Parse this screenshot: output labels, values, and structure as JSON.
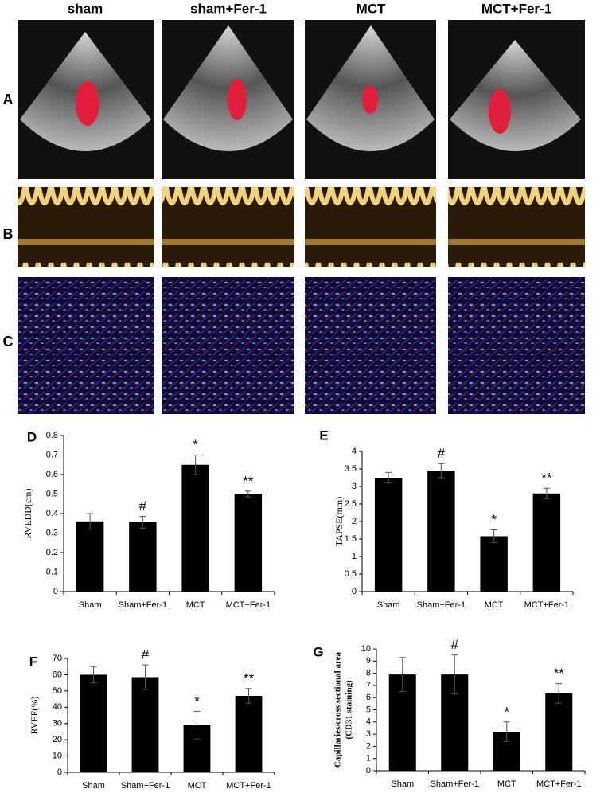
{
  "figure": {
    "column_labels": [
      "sham",
      "sham+Fer-1",
      "MCT",
      "MCT+Fer-1"
    ],
    "row_labels": [
      "A",
      "B",
      "C"
    ]
  },
  "chart_data": [
    {
      "type": "bar",
      "label": "D",
      "ylabel": [
        "RVEDD(cm)"
      ],
      "categories": [
        "Sham",
        "Sham+Fer-1",
        "MCT",
        "MCT+Fer-1"
      ],
      "values": [
        0.36,
        0.355,
        0.65,
        0.5
      ],
      "errors": [
        0.04,
        0.03,
        0.05,
        0.015
      ],
      "annotations": [
        null,
        "#",
        "*",
        "**"
      ],
      "color": "#000000",
      "ylim": [
        0,
        0.8
      ],
      "yticks": [
        0,
        0.1,
        0.2,
        0.3,
        0.4,
        0.5,
        0.6,
        0.7,
        0.8
      ],
      "grid": false
    },
    {
      "type": "bar",
      "label": "E",
      "ylabel": [
        "TAPSE(mm)"
      ],
      "categories": [
        "Sham",
        "Sham+Fer-1",
        "MCT",
        "MCT+Fer-1"
      ],
      "values": [
        3.25,
        3.45,
        1.58,
        2.8
      ],
      "errors": [
        0.15,
        0.2,
        0.18,
        0.15
      ],
      "annotations": [
        null,
        "#",
        "*",
        "**"
      ],
      "color": "#000000",
      "ylim": [
        0,
        4
      ],
      "yticks": [
        0,
        0.5,
        1,
        1.5,
        2,
        2.5,
        3,
        3.5,
        4
      ],
      "grid": false
    },
    {
      "type": "bar",
      "label": "F",
      "ylabel": [
        "RVEF(%)"
      ],
      "categories": [
        "Sham",
        "Sham+Fer-1",
        "MCT",
        "MCT+Fer-1"
      ],
      "values": [
        60,
        58.5,
        29,
        47
      ],
      "errors": [
        5,
        7.5,
        8.5,
        4.5
      ],
      "annotations": [
        null,
        "#",
        "*",
        "**"
      ],
      "color": "#000000",
      "ylim": [
        0,
        70
      ],
      "yticks": [
        0,
        10,
        20,
        30,
        40,
        50,
        60,
        70
      ],
      "grid": false
    },
    {
      "type": "bar",
      "label": "G",
      "ylabel": [
        "Capillaries/cross sectional area",
        "(CD31 staining)"
      ],
      "categories": [
        "Sham",
        "Sham+Fer-1",
        "MCT",
        "MCT+Fer-1"
      ],
      "values": [
        7.9,
        7.9,
        3.2,
        6.35
      ],
      "errors": [
        1.4,
        1.6,
        0.8,
        0.8
      ],
      "annotations": [
        null,
        "#",
        "*",
        "**"
      ],
      "color": "#000000",
      "ylim": [
        0,
        10
      ],
      "yticks": [
        0,
        1,
        2,
        3,
        4,
        5,
        6,
        7,
        8,
        9,
        10
      ],
      "grid": false
    }
  ]
}
